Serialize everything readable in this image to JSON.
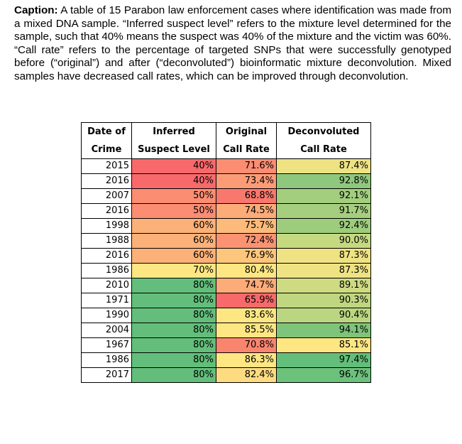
{
  "caption": {
    "label": "Caption:",
    "text": "A table of 15 Parabon law enforcement cases where identification was made from a mixed DNA sample. “Inferred suspect level” refers to the mixture level determined for the sample, such that 40% means the suspect was 40% of the mixture and the victim was 60%. “Call rate” refers to the percentage of targeted SNPs that were successfully genotyped before (“original”) and after (“deconvoluted”) bioinformatic mixture deconvolution. Mixed samples have decreased call rates, which can be improved through deconvolution."
  },
  "table": {
    "headers": [
      {
        "line1": "Date of",
        "line2": "Crime"
      },
      {
        "line1": "Inferred",
        "line2": "Suspect Level"
      },
      {
        "line1": "Original",
        "line2": "Call Rate"
      },
      {
        "line1": "Deconvoluted",
        "line2": "Call Rate"
      }
    ],
    "rows": [
      {
        "year": "2015",
        "level": "40%",
        "orig": "71.6%",
        "decon": "87.4%",
        "level_color": "#f8696b",
        "orig_color": "#fb8d73",
        "decon_color": "#eee283"
      },
      {
        "year": "2016",
        "level": "40%",
        "orig": "73.4%",
        "decon": "92.8%",
        "level_color": "#f8696b",
        "orig_color": "#fc9c76",
        "decon_color": "#8fc87c"
      },
      {
        "year": "2007",
        "level": "50%",
        "orig": "68.8%",
        "decon": "92.1%",
        "level_color": "#fa8d72",
        "orig_color": "#f9786e",
        "decon_color": "#a2ce7e"
      },
      {
        "year": "2016",
        "level": "50%",
        "orig": "74.5%",
        "decon": "91.7%",
        "level_color": "#fa8d72",
        "orig_color": "#fcab79",
        "decon_color": "#a5cf7e"
      },
      {
        "year": "1998",
        "level": "60%",
        "orig": "75.7%",
        "decon": "92.4%",
        "level_color": "#fcb179",
        "orig_color": "#fdbb7b",
        "decon_color": "#9ecc7d"
      },
      {
        "year": "1988",
        "level": "60%",
        "orig": "72.4%",
        "decon": "90.0%",
        "level_color": "#fcb179",
        "orig_color": "#fb9373",
        "decon_color": "#c5d980"
      },
      {
        "year": "2016",
        "level": "60%",
        "orig": "76.9%",
        "decon": "87.3%",
        "level_color": "#fcb179",
        "orig_color": "#fdc67d",
        "decon_color": "#efe283"
      },
      {
        "year": "1986",
        "level": "70%",
        "orig": "80.4%",
        "decon": "87.3%",
        "level_color": "#fee783",
        "orig_color": "#fee683",
        "decon_color": "#efe283"
      },
      {
        "year": "2010",
        "level": "80%",
        "orig": "74.7%",
        "decon": "89.1%",
        "level_color": "#63be7b",
        "orig_color": "#fcab79",
        "decon_color": "#cedb81"
      },
      {
        "year": "1971",
        "level": "80%",
        "orig": "65.9%",
        "decon": "90.3%",
        "level_color": "#63be7b",
        "orig_color": "#f8696b",
        "decon_color": "#c0d780"
      },
      {
        "year": "1990",
        "level": "80%",
        "orig": "83.6%",
        "decon": "90.4%",
        "level_color": "#63be7b",
        "orig_color": "#fee683",
        "decon_color": "#bbd680"
      },
      {
        "year": "2004",
        "level": "80%",
        "orig": "85.5%",
        "decon": "94.1%",
        "level_color": "#63be7b",
        "orig_color": "#fee683",
        "decon_color": "#7ec47a"
      },
      {
        "year": "1967",
        "level": "80%",
        "orig": "70.8%",
        "decon": "85.1%",
        "level_color": "#63be7b",
        "orig_color": "#f9856f",
        "decon_color": "#fee683"
      },
      {
        "year": "1986",
        "level": "80%",
        "orig": "86.3%",
        "decon": "97.4%",
        "level_color": "#63be7b",
        "orig_color": "#fee683",
        "decon_color": "#63be7b"
      },
      {
        "year": "2017",
        "level": "80%",
        "orig": "82.4%",
        "decon": "96.7%",
        "level_color": "#63be7b",
        "orig_color": "#fddb81",
        "decon_color": "#6cc17b"
      }
    ]
  }
}
